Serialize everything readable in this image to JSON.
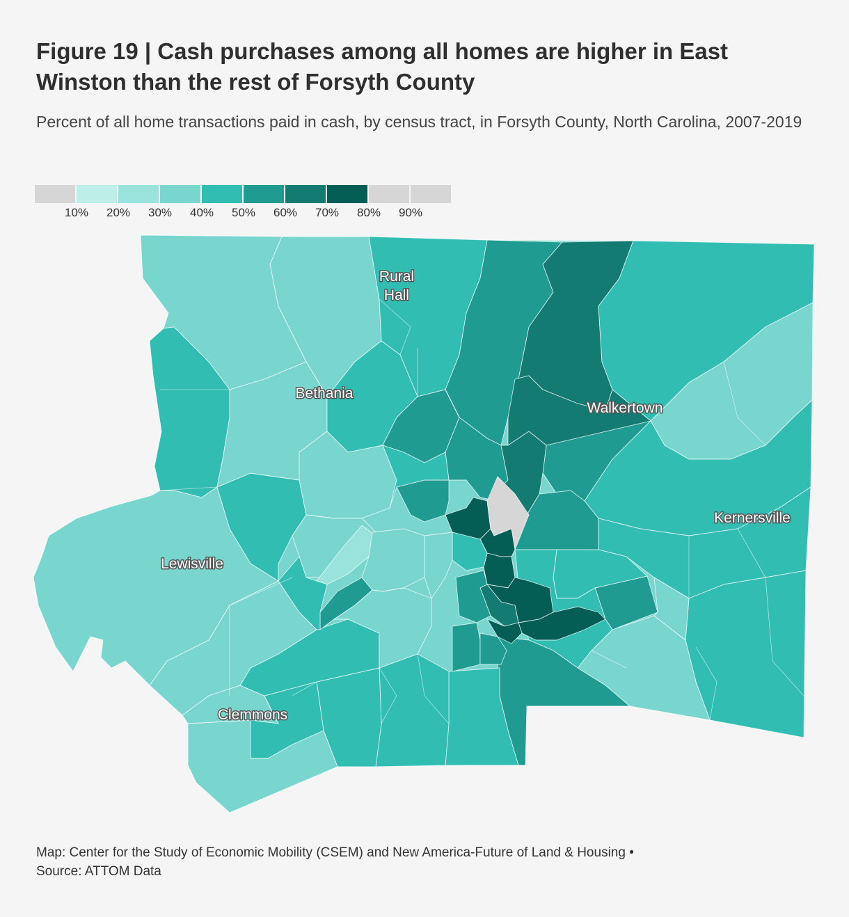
{
  "title": "Figure 19 | Cash purchases among all homes are higher in East Winston than the rest of Forsyth County",
  "subtitle": "Percent of all home transactions paid in cash, by census tract, in Forsyth County, North Carolina, 2007-2019",
  "legend": {
    "bins": [
      {
        "color": "#d6d6d6"
      },
      {
        "color": "#bdeee8"
      },
      {
        "color": "#9ae3dc"
      },
      {
        "color": "#78d6cf"
      },
      {
        "color": "#31bdb2"
      },
      {
        "color": "#1f9b91"
      },
      {
        "color": "#137b71"
      },
      {
        "color": "#055e55"
      },
      {
        "color": "#d6d6d6"
      },
      {
        "color": "#d6d6d6"
      }
    ],
    "ticks": [
      "10%",
      "20%",
      "30%",
      "40%",
      "50%",
      "60%",
      "70%",
      "80%",
      "90%"
    ]
  },
  "places": {
    "rural_hall_1": "Rural",
    "rural_hall_2": "Hall",
    "bethania": "Bethania",
    "walkertown": "Walkertown",
    "kernersville": "Kernersville",
    "lewisville": "Lewisville",
    "clemmons": "Clemmons"
  },
  "footer": {
    "line1": "Map: Center for the Study of Economic Mobility (CSEM) and New America-Future of Land & Housing •",
    "line2": "Source: ATTOM Data"
  }
}
